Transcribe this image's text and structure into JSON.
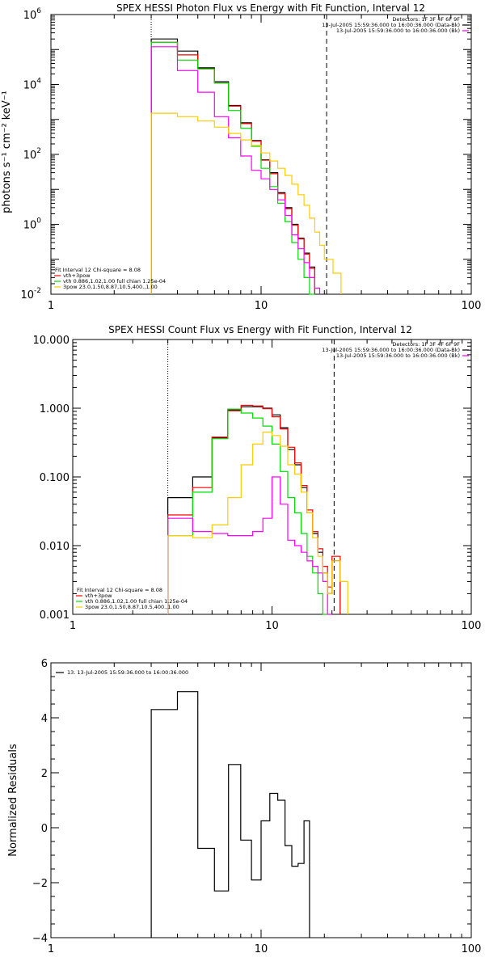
{
  "chart_data": [
    {
      "type": "line",
      "step": true,
      "title": "SPEX HESSI Photon Flux vs Energy with Fit Function, Interval 12",
      "ylabel": "photons s⁻¹ cm⁻² keV⁻¹",
      "xlabel": "",
      "xscale": "log",
      "yscale": "log",
      "xlim": [
        1,
        100
      ],
      "ylim": [
        0.01,
        1000000
      ],
      "x_ticks": [
        {
          "value": 1,
          "label": "1"
        },
        {
          "value": 10,
          "label": "10"
        },
        {
          "value": 100,
          "label": "100"
        }
      ],
      "y_ticks": [
        {
          "value": 0.01,
          "base": "10",
          "exp": "-2"
        },
        {
          "value": 1,
          "base": "10",
          "exp": "0"
        },
        {
          "value": 100,
          "base": "10",
          "exp": "2"
        },
        {
          "value": 10000,
          "base": "10",
          "exp": "4"
        },
        {
          "value": 1000000,
          "base": "10",
          "exp": "6"
        }
      ],
      "bin_edges": [
        3,
        4,
        5,
        6,
        7,
        8,
        9,
        10,
        11,
        12,
        13,
        14,
        15,
        16,
        17,
        18,
        19,
        20,
        22,
        24
      ],
      "series": [
        {
          "color": "#000000",
          "values": [
            200000,
            90000,
            30000,
            12000,
            2500,
            800,
            250,
            70,
            30,
            8,
            3,
            1,
            0.4,
            0.15,
            0.06,
            null,
            null,
            null,
            null
          ]
        },
        {
          "color": "#ff0000",
          "values": [
            160000,
            70000,
            28000,
            11000,
            2400,
            760,
            240,
            68,
            28,
            7.5,
            2.8,
            0.95,
            0.38,
            0.14,
            0.055,
            null,
            null,
            null,
            null
          ]
        },
        {
          "color": "#00dd00",
          "values": [
            160000,
            50000,
            28000,
            11000,
            1800,
            560,
            170,
            40,
            12,
            4,
            1.2,
            0.3,
            0.1,
            0.03,
            0.01,
            null,
            null,
            null,
            null
          ]
        },
        {
          "color": "#ff00ff",
          "values": [
            120000,
            25000,
            6000,
            1200,
            300,
            90,
            35,
            20,
            10,
            5,
            1.8,
            0.5,
            0.2,
            0.08,
            0.03,
            0.015,
            null,
            null,
            null
          ]
        },
        {
          "color": "#ffcc00",
          "values": [
            1500,
            1200,
            900,
            600,
            400,
            260,
            180,
            110,
            65,
            40,
            25,
            14,
            7,
            3.5,
            1.5,
            0.6,
            0.25,
            0.1,
            0.04
          ]
        }
      ],
      "vlines": [
        {
          "x": 3,
          "style": "dotted",
          "color": "#000000"
        },
        {
          "x": 20.5,
          "style": "dashed",
          "color": "#000000"
        }
      ],
      "legend_top_right": [
        {
          "text": "Detectors: 1F 3F 4F 6F 9F",
          "color": ""
        },
        {
          "text": "13-Jul-2005 15:59:36.000 to 16:00:36.000 (Data-Bk)",
          "color": "#000000"
        },
        {
          "text": "13-Jul-2005 15:59:36.000 to 16:00:36.000 (Bk)",
          "color": "#ff00ff"
        }
      ],
      "legend_bottom_left": [
        {
          "text": "Fit Interval 12    Chi-square = 8.08",
          "color": ""
        },
        {
          "text": "vth+3pow",
          "color": "#ff0000"
        },
        {
          "text": "vth 0.886,1.02,1.00  full chian 1.25e-04",
          "color": "#00dd00"
        },
        {
          "text": "3pow  23.0,1.50,8.87,10.5,400.,1.00",
          "color": "#ffcc00"
        }
      ]
    },
    {
      "type": "line",
      "step": true,
      "title": "SPEX HESSI Count Flux vs Energy with Fit Function, Interval 12",
      "ylabel": "",
      "xlabel": "",
      "xscale": "log",
      "yscale": "log",
      "xlim": [
        1,
        100
      ],
      "ylim": [
        0.001,
        10
      ],
      "x_ticks": [
        {
          "value": 1,
          "label": "1"
        },
        {
          "value": 10,
          "label": "10"
        },
        {
          "value": 100,
          "label": "100"
        }
      ],
      "y_ticks": [
        {
          "value": 0.001,
          "label": "0.001"
        },
        {
          "value": 0.01,
          "label": "0.010"
        },
        {
          "value": 0.1,
          "label": "0.100"
        },
        {
          "value": 1,
          "label": "1.000"
        },
        {
          "value": 10,
          "label": "10.000"
        }
      ],
      "bin_edges": [
        3,
        4,
        5,
        6,
        7,
        8,
        9,
        10,
        11,
        12,
        13,
        14,
        15,
        16,
        17,
        18,
        19,
        20,
        22,
        24
      ],
      "series": [
        {
          "color": "#000000",
          "values": [
            0.05,
            0.1,
            0.37,
            0.95,
            1.05,
            1.05,
            1.0,
            0.8,
            0.52,
            0.25,
            0.15,
            0.07,
            0.03,
            0.015,
            0.008,
            0.004,
            0.002,
            0.006,
            null
          ]
        },
        {
          "color": "#ff0000",
          "values": [
            0.028,
            0.07,
            0.38,
            0.92,
            1.1,
            1.08,
            0.98,
            0.75,
            0.5,
            0.27,
            0.16,
            0.075,
            0.033,
            0.016,
            0.009,
            0.005,
            0.0025,
            0.007,
            null
          ]
        },
        {
          "color": "#00dd00",
          "values": [
            0.014,
            0.06,
            0.36,
            0.97,
            0.85,
            0.72,
            0.55,
            0.3,
            0.12,
            0.05,
            0.03,
            0.015,
            0.007,
            0.004,
            0.002,
            0.001,
            null,
            null,
            null
          ]
        },
        {
          "color": "#ff00ff",
          "values": [
            0.025,
            0.016,
            0.015,
            0.014,
            0.014,
            0.016,
            0.025,
            0.1,
            0.04,
            0.012,
            0.01,
            0.008,
            0.006,
            0.005,
            0.004,
            0.003,
            0.001,
            null,
            null
          ]
        },
        {
          "color": "#ffcc00",
          "values": [
            0.014,
            0.013,
            0.02,
            0.05,
            0.15,
            0.3,
            0.45,
            0.4,
            0.28,
            0.15,
            0.11,
            0.06,
            0.03,
            0.013,
            0.007,
            0.004,
            0.002,
            0.006,
            0.003
          ]
        }
      ],
      "vlines": [
        {
          "x": 3,
          "style": "dotted",
          "color": "#000000"
        },
        {
          "x": 20.5,
          "style": "dashed",
          "color": "#000000"
        }
      ],
      "legend_top_right": [
        {
          "text": "Detectors: 1F 3F 4F 6F 9F",
          "color": ""
        },
        {
          "text": "13-Jul-2005 15:59:36.000 to 16:00:36.000 (Data-Bk)",
          "color": "#000000"
        },
        {
          "text": "13-Jul-2005 15:59:36.000 to 16:00:36.000 (Bk)",
          "color": "#ff00ff"
        }
      ],
      "legend_bottom_left": [
        {
          "text": "Fit Interval 12    Chi-square = 8.08",
          "color": ""
        },
        {
          "text": "vth+3pow",
          "color": "#ff0000"
        },
        {
          "text": "vth 0.886,1.02,1.00  full chian 1.25e-04",
          "color": "#00dd00"
        },
        {
          "text": "3pow  23.0,1.50,8.87,10.5,400.,1.00",
          "color": "#ffcc00"
        }
      ]
    },
    {
      "type": "line",
      "step": true,
      "title": "",
      "ylabel": "Normalized Residuals",
      "xlabel": "",
      "xscale": "log",
      "yscale": "linear",
      "xlim": [
        1,
        100
      ],
      "ylim": [
        -4,
        6
      ],
      "x_ticks": [
        {
          "value": 1,
          "label": "1"
        },
        {
          "value": 10,
          "label": "10"
        },
        {
          "value": 100,
          "label": "100"
        }
      ],
      "y_ticks": [
        {
          "value": -4,
          "label": "−4"
        },
        {
          "value": -2,
          "label": "−2"
        },
        {
          "value": 0,
          "label": "0"
        },
        {
          "value": 2,
          "label": "2"
        },
        {
          "value": 4,
          "label": "4"
        },
        {
          "value": 6,
          "label": "6"
        }
      ],
      "bin_edges": [
        3,
        4,
        5,
        6,
        7,
        8,
        9,
        10,
        11,
        12,
        13,
        14,
        15,
        16,
        17,
        18,
        19,
        20
      ],
      "series": [
        {
          "color": "#000000",
          "values": [
            4.3,
            4.95,
            -0.75,
            -2.3,
            2.3,
            -0.45,
            -1.9,
            0.25,
            1.25,
            1.0,
            -0.65,
            -1.4,
            -1.3,
            0.25,
            null,
            null,
            null
          ]
        }
      ],
      "vlines": [],
      "legend_top_right": [],
      "legend_bottom_left": [],
      "legend_top_left": [
        {
          "text": "13. 13-Jul-2005 15:59:36.000 to 16:00:36.000",
          "color": "#000000"
        }
      ]
    }
  ]
}
